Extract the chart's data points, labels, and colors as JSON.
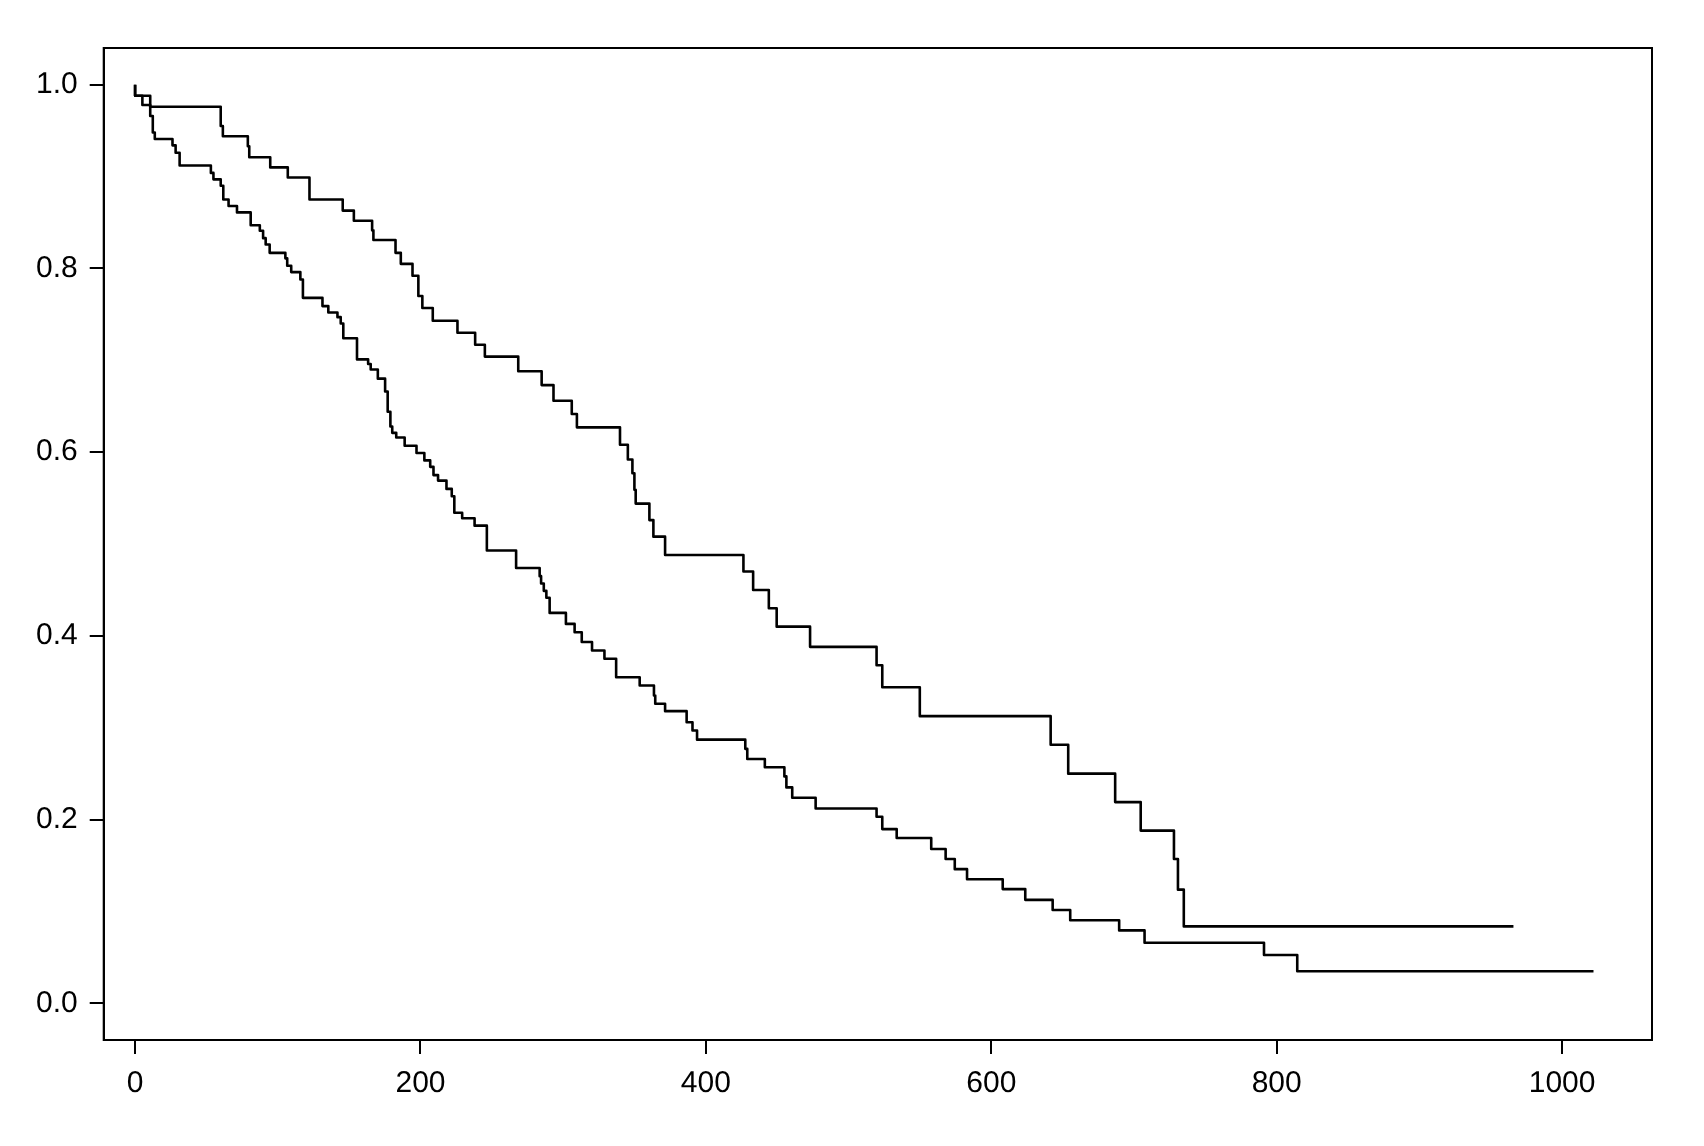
{
  "chart_data": {
    "type": "step",
    "xlim": [
      -22,
      1063
    ],
    "ylim": [
      -0.04,
      1.04
    ],
    "xticks": [
      0,
      200,
      400,
      600,
      800,
      1000
    ],
    "yticks": [
      {
        "value": 0,
        "label": "0.0"
      },
      {
        "value": 0.2,
        "label": "0.2"
      },
      {
        "value": 0.4,
        "label": "0.4"
      },
      {
        "value": 0.6,
        "label": "0.6"
      },
      {
        "value": 0.8,
        "label": "0.8"
      },
      {
        "value": 1,
        "label": "1.0"
      }
    ],
    "grid": false,
    "legend": false,
    "marker": "none",
    "line_style": "solid",
    "series": [
      {
        "color": "#000000",
        "x": [
          0,
          10.6,
          60,
          61.5,
          79,
          80,
          94.7,
          107,
          122.2,
          145.5,
          153.3,
          166.1,
          167,
          182.5,
          186.2,
          194.4,
          198.5,
          201.3,
          208.6,
          225.9,
          238.3,
          245.1,
          268.5,
          284.9,
          293.2,
          306,
          309.6,
          339.8,
          345.3,
          348.5,
          349.9,
          350.8,
          360.4,
          363.2,
          371.4,
          426.3,
          433.1,
          444.1,
          449.6,
          473,
          519.6,
          523.6,
          549.9,
          641.6,
          653.9,
          686.8,
          704.7,
          728,
          730.8,
          734.9,
          765,
          965.9
        ],
        "values": [
          1,
          0.988,
          0.976,
          0.955,
          0.944,
          0.933,
          0.921,
          0.91,
          0.899,
          0.875,
          0.863,
          0.852,
          0.8415,
          0.831,
          0.817,
          0.805,
          0.792,
          0.77,
          0.757,
          0.743,
          0.73,
          0.717,
          0.704,
          0.688,
          0.673,
          0.656,
          0.6415,
          0.627,
          0.608,
          0.592,
          0.577,
          0.559,
          0.544,
          0.526,
          0.508,
          0.488,
          0.47,
          0.45,
          0.43,
          0.41,
          0.388,
          0.368,
          0.344,
          0.3126,
          0.2815,
          0.25,
          0.219,
          0.188,
          0.157,
          0.1237,
          0.0837,
          0.0837
        ]
      },
      {
        "color": "#000000",
        "x": [
          0,
          5.1,
          10.6,
          12.4,
          13.8,
          26.2,
          28.4,
          31.2,
          53.1,
          54.9,
          60,
          61.8,
          65.5,
          71.4,
          81,
          87.4,
          89.7,
          91.5,
          94.3,
          105.3,
          106.6,
          109.4,
          115.8,
          117.6,
          131.3,
          135.4,
          141.8,
          144.1,
          145.9,
          155.5,
          163.3,
          165.1,
          170.1,
          175.2,
          177,
          178.9,
          180.2,
          183,
          188.9,
          197.2,
          202.7,
          206.8,
          209.1,
          212.3,
          218.2,
          221.9,
          223.7,
          229.2,
          237.9,
          246.5,
          267,
          283.5,
          284.5,
          286.4,
          288.2,
          290.5,
          301.9,
          308,
          313,
          320.2,
          328.9,
          337.1,
          353.6,
          363.6,
          364.5,
          371.4,
          386.5,
          390.6,
          393.8,
          427.6,
          429,
          441.3,
          455,
          456.4,
          460.5,
          476.9,
          519.6,
          523.6,
          533.7,
          557.9,
          568,
          574.4,
          583,
          608,
          623.8,
          643,
          655.3,
          689.6,
          707.4,
          791.1,
          814.4,
          883,
          1022
        ],
        "values": [
          1,
          0.988,
          0.978,
          0.966,
          0.948,
          0.941,
          0.934,
          0.926,
          0.912,
          0.904,
          0.897,
          0.89,
          0.875,
          0.868,
          0.861,
          0.847,
          0.841,
          0.833,
          0.826,
          0.817,
          0.811,
          0.803,
          0.796,
          0.788,
          0.768,
          0.759,
          0.752,
          0.747,
          0.74,
          0.724,
          0.701,
          0.696,
          0.69,
          0.68,
          0.666,
          0.644,
          0.628,
          0.621,
          0.616,
          0.607,
          0.599,
          0.591,
          0.584,
          0.575,
          0.569,
          0.56,
          0.552,
          0.534,
          0.528,
          0.52,
          0.493,
          0.4739,
          0.465,
          0.457,
          0.449,
          0.4415,
          0.425,
          0.413,
          0.404,
          0.3933,
          0.384,
          0.375,
          0.355,
          0.346,
          0.335,
          0.326,
          0.318,
          0.306,
          0.297,
          0.287,
          0.277,
          0.266,
          0.257,
          0.247,
          0.235,
          0.2237,
          0.212,
          0.203,
          0.1896,
          0.18,
          0.168,
          0.157,
          0.146,
          0.135,
          0.1243,
          0.1126,
          0.1015,
          0.0904,
          0.0793,
          0.0659,
          0.0526,
          0.0348,
          0.0348
        ]
      }
    ]
  }
}
